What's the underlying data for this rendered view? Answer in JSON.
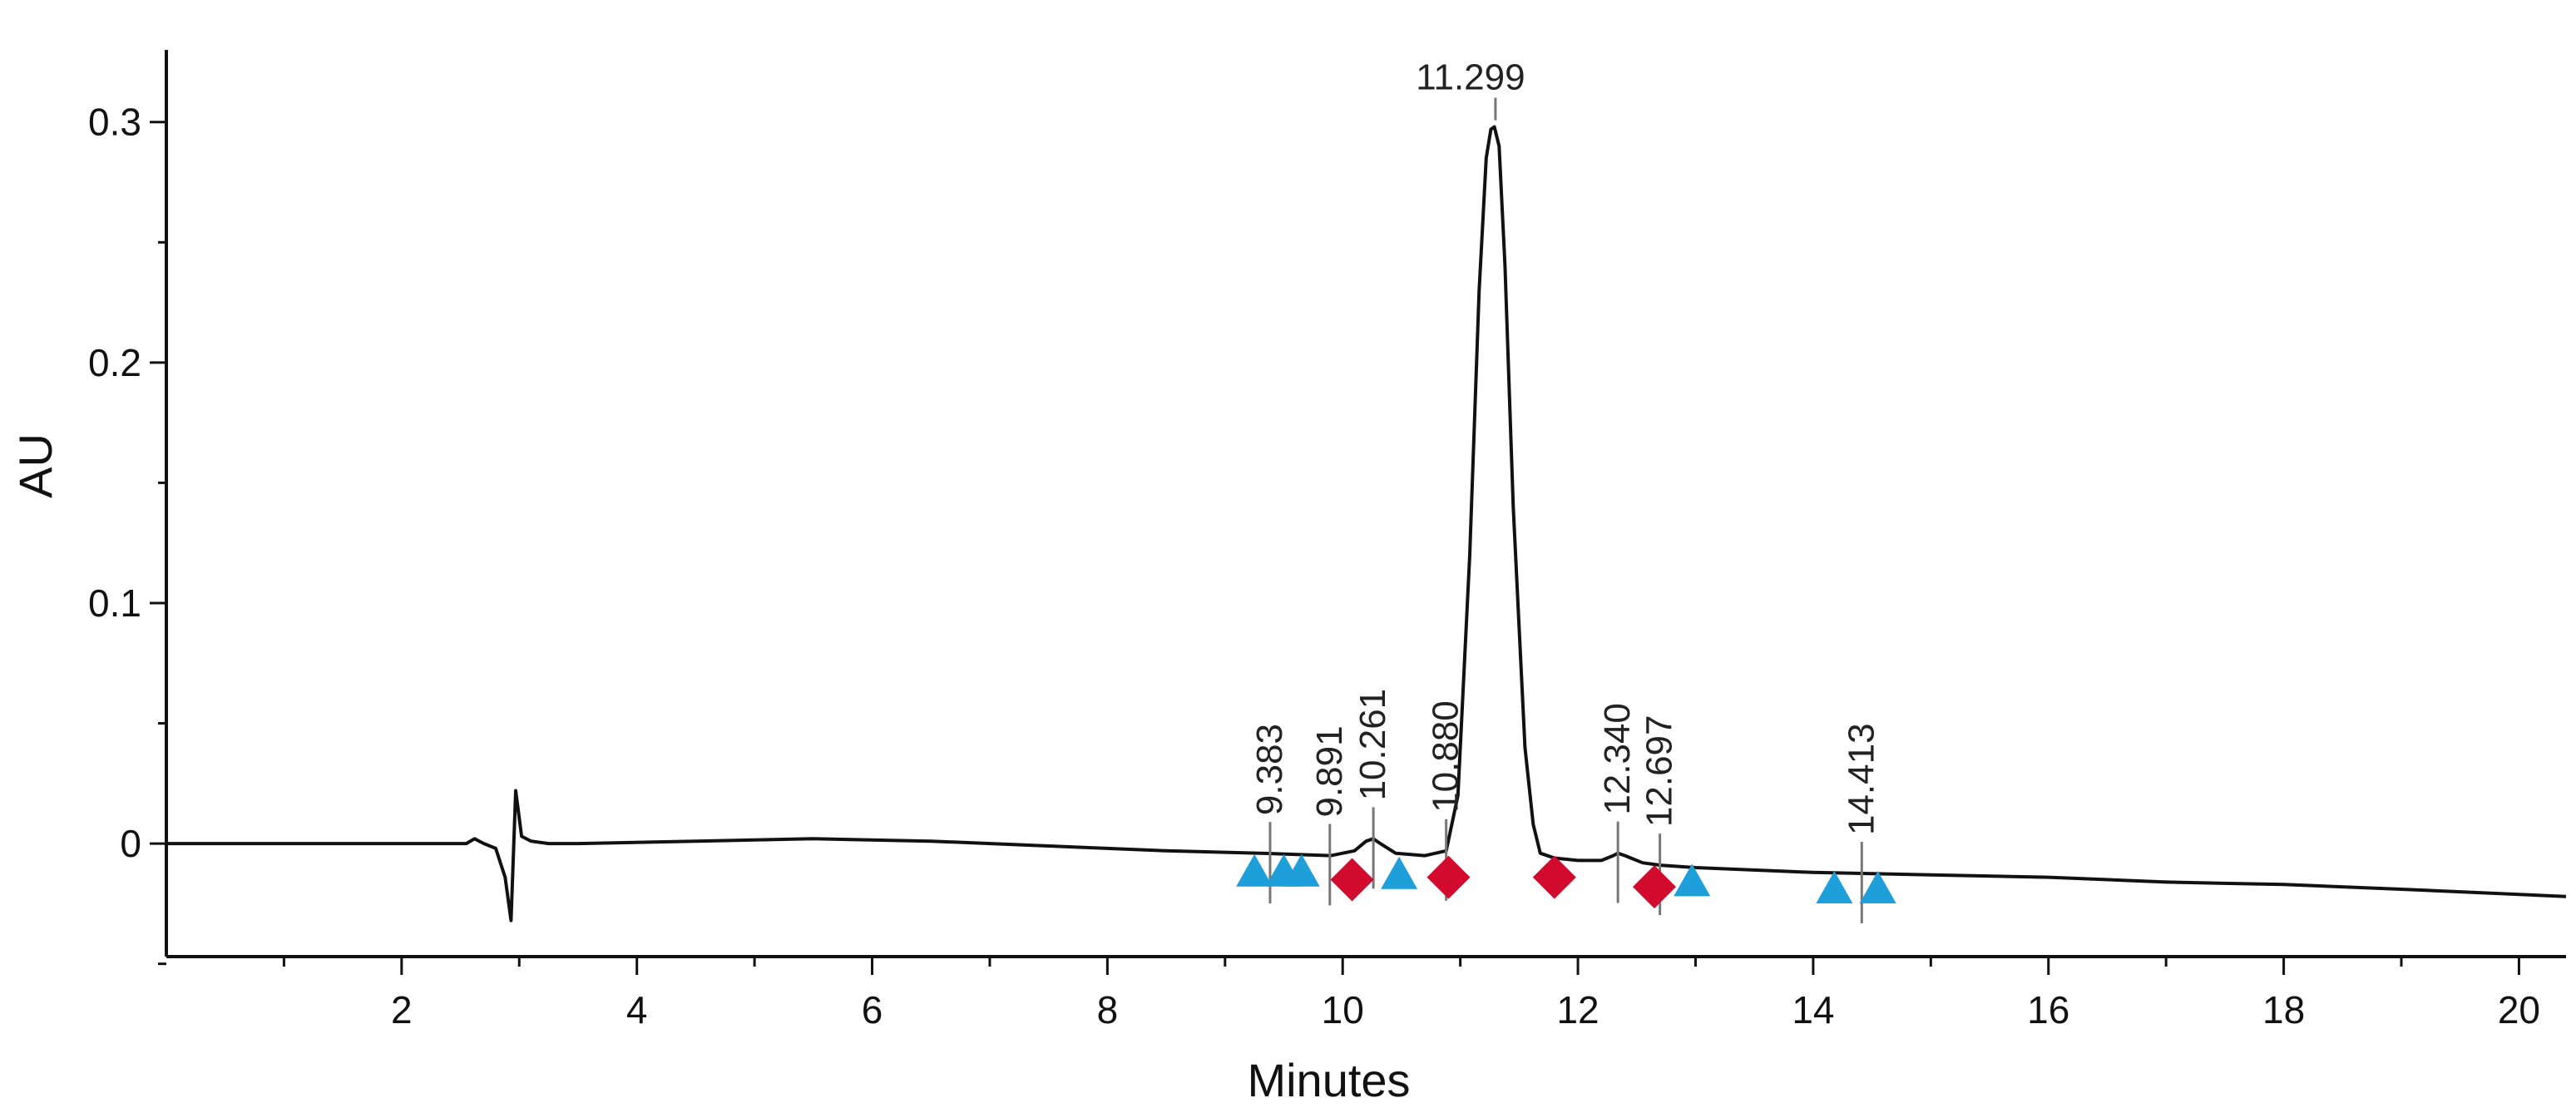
{
  "chart_data": {
    "type": "line",
    "title": "",
    "xlabel": "Minutes",
    "ylabel": "AU",
    "xlim": [
      0,
      20.4
    ],
    "ylim": [
      -0.047,
      0.33
    ],
    "x_ticks": [
      2,
      4,
      6,
      8,
      10,
      12,
      14,
      16,
      18,
      20
    ],
    "x_tick_labels": [
      "2",
      "4",
      "6",
      "8",
      "10",
      "12",
      "14",
      "16",
      "18",
      "20"
    ],
    "x_minor_ticks": [
      1,
      3,
      5,
      7,
      9,
      11,
      13,
      15,
      17,
      19
    ],
    "y_ticks": [
      0,
      0.1,
      0.2,
      0.3
    ],
    "y_tick_labels": [
      "0",
      "0.1",
      "0.2",
      "0.3"
    ],
    "y_minor_ticks": [
      -0.05,
      0.05,
      0.15,
      0.25
    ],
    "grid": false,
    "legend": "none",
    "series": [
      {
        "color": "#111111",
        "x": [
          0,
          2.3,
          2.55,
          2.62,
          2.7,
          2.8,
          2.88,
          2.93,
          2.97,
          3.02,
          3.1,
          3.25,
          3.5,
          4.5,
          5.5,
          6.5,
          7.5,
          8.5,
          9.3,
          9.9,
          10.1,
          10.2,
          10.26,
          10.32,
          10.45,
          10.7,
          10.88,
          10.98,
          11.08,
          11.16,
          11.22,
          11.26,
          11.29,
          11.33,
          11.38,
          11.45,
          11.55,
          11.62,
          11.68,
          11.8,
          12.0,
          12.2,
          12.3,
          12.34,
          12.4,
          12.55,
          12.7,
          13.0,
          14.0,
          15.0,
          16.0,
          17.0,
          18.0,
          19.0,
          20.4
        ],
        "y": [
          0,
          0,
          0,
          0.002,
          0,
          -0.002,
          -0.014,
          -0.032,
          0.022,
          0.003,
          0.001,
          0,
          0,
          0.001,
          0.002,
          0.001,
          -0.001,
          -0.003,
          -0.004,
          -0.005,
          -0.003,
          0.001,
          0.002,
          0,
          -0.004,
          -0.005,
          -0.003,
          0.02,
          0.12,
          0.23,
          0.285,
          0.297,
          0.298,
          0.29,
          0.24,
          0.14,
          0.04,
          0.008,
          -0.004,
          -0.006,
          -0.007,
          -0.007,
          -0.005,
          -0.004,
          -0.005,
          -0.008,
          -0.009,
          -0.01,
          -0.012,
          -0.013,
          -0.014,
          -0.016,
          -0.017,
          -0.019,
          -0.022
        ]
      }
    ],
    "peak_labels": [
      {
        "x": 9.383,
        "text": "9.383"
      },
      {
        "x": 9.891,
        "text": "9.891"
      },
      {
        "x": 10.261,
        "text": "10.261"
      },
      {
        "x": 10.88,
        "text": "10.880"
      },
      {
        "x": 11.299,
        "text": "11.299"
      },
      {
        "x": 12.34,
        "text": "12.340"
      },
      {
        "x": 12.697,
        "text": "12.697"
      },
      {
        "x": 14.413,
        "text": "14.413"
      }
    ],
    "markers": [
      {
        "shape": "triangle",
        "color": "#1f9fda",
        "x": 9.25,
        "y": -0.012
      },
      {
        "shape": "triangle",
        "color": "#1f9fda",
        "x": 9.5,
        "y": -0.012
      },
      {
        "shape": "triangle",
        "color": "#1f9fda",
        "x": 9.65,
        "y": -0.012
      },
      {
        "shape": "diamond",
        "color": "#d20a2e",
        "x": 10.08,
        "y": -0.015
      },
      {
        "shape": "triangle",
        "color": "#1f9fda",
        "x": 10.48,
        "y": -0.013
      },
      {
        "shape": "diamond",
        "color": "#d20a2e",
        "x": 10.9,
        "y": -0.014
      },
      {
        "shape": "diamond",
        "color": "#d20a2e",
        "x": 11.8,
        "y": -0.014
      },
      {
        "shape": "diamond",
        "color": "#d20a2e",
        "x": 12.65,
        "y": -0.018
      },
      {
        "shape": "triangle",
        "color": "#1f9fda",
        "x": 12.97,
        "y": -0.016
      },
      {
        "shape": "triangle",
        "color": "#1f9fda",
        "x": 14.18,
        "y": -0.019
      },
      {
        "shape": "triangle",
        "color": "#1f9fda",
        "x": 14.55,
        "y": -0.019
      }
    ]
  }
}
